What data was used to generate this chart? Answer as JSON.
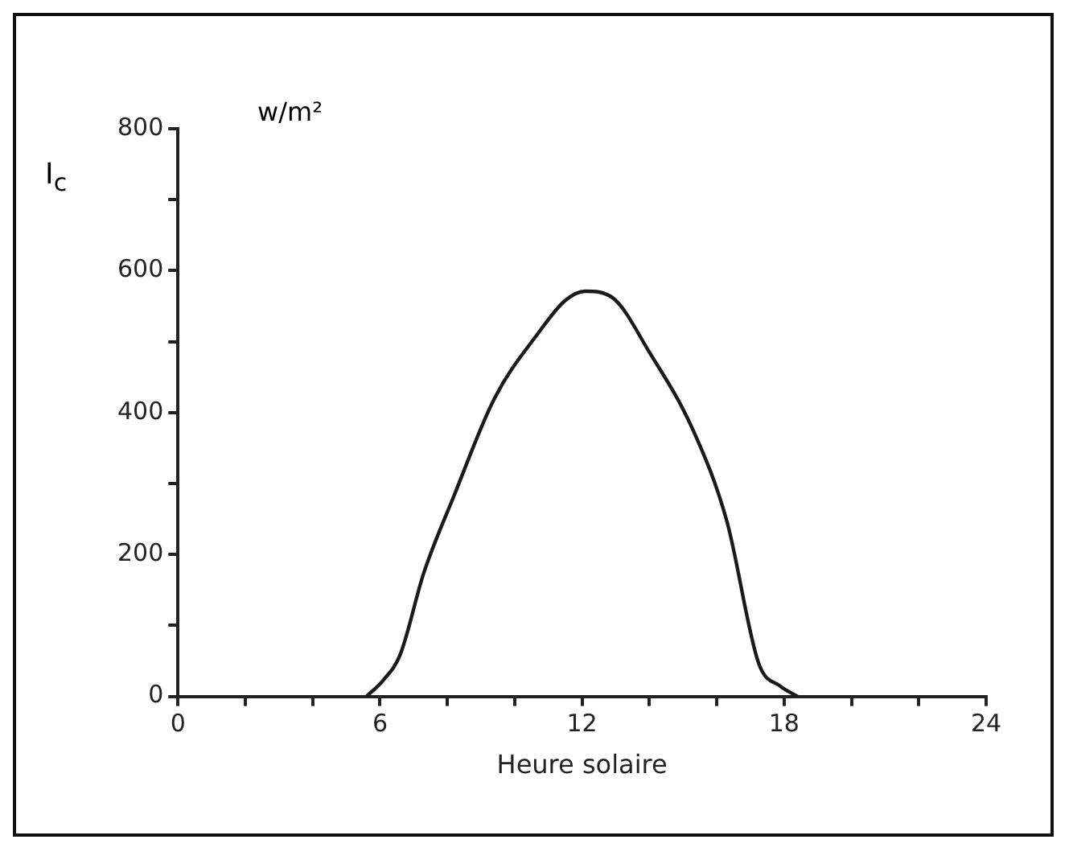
{
  "chart_data": {
    "type": "line",
    "xlabel": "Heure solaire",
    "ylabel": "I$_{c}$",
    "annotations": [
      "w/m²"
    ],
    "series": [
      {
        "color": "#1a1a1a",
        "x": [
          5.6,
          6.1,
          6.6,
          7.3,
          8.2,
          9.4,
          10.7,
          11.5,
          12.1,
          12.9,
          14.0,
          15.3,
          16.3,
          17.25,
          17.9,
          18.4
        ],
        "values": [
          0,
          23,
          59,
          174,
          283,
          420,
          512,
          558,
          571,
          562,
          485,
          375,
          247,
          46,
          14,
          0
        ]
      }
    ],
    "xlim": [
      0,
      24
    ],
    "xticks": [
      0,
      {
        "value": 2,
        "label": null
      },
      {
        "value": 4,
        "label": null
      },
      6,
      {
        "value": 8,
        "label": null
      },
      {
        "value": 10,
        "label": null
      },
      12,
      {
        "value": 14,
        "label": null
      },
      {
        "value": 16,
        "label": null
      },
      18,
      {
        "value": 20,
        "label": null
      },
      {
        "value": 22,
        "label": null
      },
      24
    ],
    "ylim": [
      0,
      800
    ],
    "yticks": [
      0,
      {
        "value": 100,
        "label": null
      },
      200,
      {
        "value": 300,
        "label": null
      },
      400,
      {
        "value": 500,
        "label": null
      },
      600,
      {
        "value": 700,
        "label": null
      },
      800
    ],
    "grid": false,
    "legend": false,
    "marker": "none",
    "line_style": "solid"
  }
}
